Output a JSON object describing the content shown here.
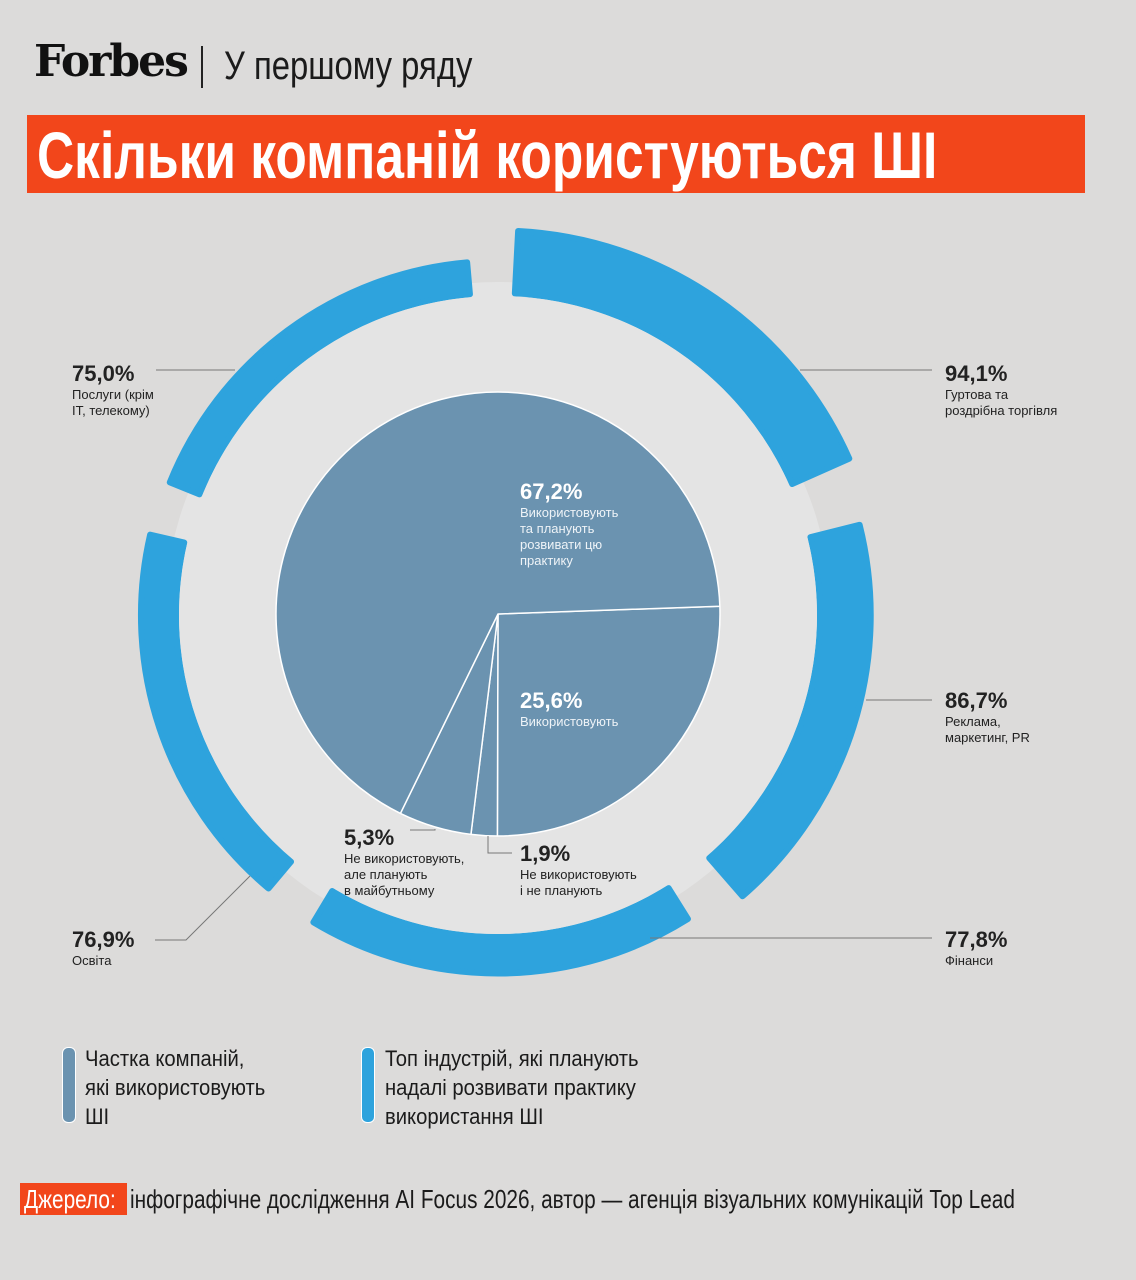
{
  "header": {
    "logo": "Forbes",
    "section": "У першому ряду",
    "title": "Скільки компаній користуються ШІ"
  },
  "colors": {
    "accent": "#f2461b",
    "pie": "#6b93b0",
    "ring": "#2ea3dd",
    "disc": "#e4e4e4",
    "background": "#dcdbda"
  },
  "chart_data": [
    {
      "type": "pie",
      "name": "Частка компаній, які використовують ШІ",
      "slices": [
        {
          "value": 25.6,
          "label": "25,6%",
          "text": "Використовують"
        },
        {
          "value": 1.9,
          "label": "1,9%",
          "text": "Не використовують\nі не планують"
        },
        {
          "value": 5.3,
          "label": "5,3%",
          "text": "Не використовують,\nале планують\nв майбутньому"
        },
        {
          "value": 67.2,
          "label": "67,2%",
          "text": "Використовують\nта планують\nрозвивати цю\nпрактику"
        }
      ]
    },
    {
      "type": "bar",
      "subtype": "radial",
      "name": "Топ індустрій, які планують надалі розвивати практику використання ШІ",
      "categories": [
        {
          "value": 94.1,
          "label": "94,1%",
          "text": "Гуртова та\nроздрібна торгівля"
        },
        {
          "value": 86.7,
          "label": "86,7%",
          "text": "Реклама,\nмаркетинг, PR"
        },
        {
          "value": 77.8,
          "label": "77,8%",
          "text": "Фінанси"
        },
        {
          "value": 76.9,
          "label": "76,9%",
          "text": "Освіта"
        },
        {
          "value": 75.0,
          "label": "75,0%",
          "text": "Послуги (крім\nIT, телекому)"
        }
      ]
    }
  ],
  "legend": [
    {
      "text": "Частка компаній,\nякі використовують\nШІ"
    },
    {
      "text": "Топ індустрій, які планують\nнадалі розвивати практику\nвикористання ШІ"
    }
  ],
  "source": {
    "tag": "Джерело:",
    "text": "інфографічне дослідження AI Focus 2026, автор — агенція візуальних комунікацій Top Lead"
  }
}
